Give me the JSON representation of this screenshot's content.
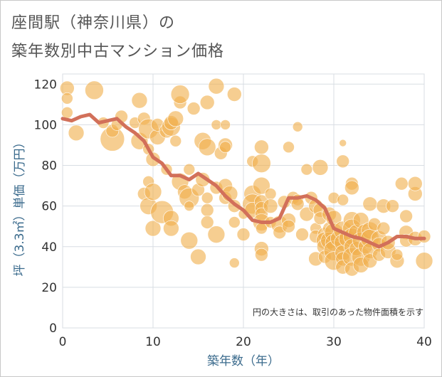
{
  "chart_data": {
    "type": "scatter",
    "title_line1": "座間駅（神奈川県）の",
    "title_line2": "築年数別中古マンション価格",
    "xlabel": "築年数（年）",
    "ylabel": "坪（3.3㎡）単価（万円）",
    "annotation": "円の大きさは、取引のあった物件面積を示す",
    "xlim": [
      0,
      40
    ],
    "ylim": [
      0,
      125
    ],
    "x_ticks": [
      0,
      10,
      20,
      30,
      40
    ],
    "y_ticks": [
      0,
      20,
      40,
      60,
      80,
      100,
      120
    ],
    "grid": true,
    "colors": {
      "bubble": "#f0b04e",
      "line": "#d2705a",
      "grid": "#d8dde3",
      "axis_text": "#3a6a8c"
    },
    "series": [
      {
        "type": "line",
        "x": [
          0,
          1,
          2,
          3,
          4,
          5,
          6,
          7,
          8,
          9,
          10,
          11,
          12,
          13,
          14,
          15,
          16,
          17,
          18,
          19,
          20,
          21,
          22,
          23,
          24,
          25,
          26,
          27,
          28,
          29,
          30,
          31,
          32,
          33,
          34,
          35,
          36,
          37,
          38,
          39,
          40
        ],
        "y": [
          103,
          102,
          104,
          105,
          101,
          102,
          103,
          99,
          96,
          92,
          84,
          81,
          75,
          75,
          73,
          76,
          73,
          70,
          65,
          61,
          58,
          53,
          52,
          52,
          54,
          64,
          64,
          65,
          63,
          59,
          49,
          47,
          45,
          44,
          42,
          40,
          42,
          45,
          45,
          44,
          44
        ]
      },
      {
        "type": "bubble",
        "points": [
          [
            0.5,
            118,
            10
          ],
          [
            0.5,
            113,
            8
          ],
          [
            0.5,
            106,
            8
          ],
          [
            1.5,
            96,
            11
          ],
          [
            3.5,
            117,
            13
          ],
          [
            4.5,
            101,
            8
          ],
          [
            5.5,
            93,
            17
          ],
          [
            5.5,
            97,
            9
          ],
          [
            6,
            100,
            8
          ],
          [
            6.5,
            104,
            9
          ],
          [
            8,
            101,
            8
          ],
          [
            8.5,
            92,
            12
          ],
          [
            8.5,
            112,
            11
          ],
          [
            9,
            103,
            9
          ],
          [
            9,
            66,
            9
          ],
          [
            9.5,
            98,
            14
          ],
          [
            9.5,
            88,
            8
          ],
          [
            9.5,
            60,
            12
          ],
          [
            9.5,
            72,
            8
          ],
          [
            10,
            67,
            12
          ],
          [
            10,
            49,
            11
          ],
          [
            10,
            83,
            10
          ],
          [
            10.5,
            94,
            11
          ],
          [
            10.5,
            100,
            9
          ],
          [
            11,
            57,
            16
          ],
          [
            11.5,
            78,
            8
          ],
          [
            11.5,
            97,
            10
          ],
          [
            12,
            99,
            13
          ],
          [
            12,
            101,
            10
          ],
          [
            12,
            54,
            11
          ],
          [
            12,
            49,
            11
          ],
          [
            12.5,
            103,
            11
          ],
          [
            12.5,
            92,
            8
          ],
          [
            13,
            72,
            12
          ],
          [
            13,
            111,
            9
          ],
          [
            13,
            115,
            13
          ],
          [
            13.5,
            67,
            10
          ],
          [
            14,
            64,
            14
          ],
          [
            14,
            78,
            8
          ],
          [
            14,
            43,
            12
          ],
          [
            14,
            60,
            7
          ],
          [
            14.5,
            108,
            9
          ],
          [
            15,
            35,
            11
          ],
          [
            15,
            68,
            9
          ],
          [
            15.5,
            73,
            10
          ],
          [
            15.5,
            92,
            12
          ],
          [
            16,
            89,
            12
          ],
          [
            16,
            58,
            9
          ],
          [
            16,
            111,
            10
          ],
          [
            16,
            52,
            9
          ],
          [
            16,
            64,
            8
          ],
          [
            17,
            119,
            11
          ],
          [
            17,
            46,
            12
          ],
          [
            17,
            100,
            7
          ],
          [
            17,
            69,
            9
          ],
          [
            17.5,
            86,
            9
          ],
          [
            18,
            70,
            10
          ],
          [
            18,
            64,
            9
          ],
          [
            18,
            90,
            10
          ],
          [
            18,
            89,
            8
          ],
          [
            18,
            100,
            7
          ],
          [
            18.5,
            66,
            11
          ],
          [
            19,
            115,
            10
          ],
          [
            19,
            32,
            7
          ],
          [
            19,
            60,
            9
          ],
          [
            19,
            52,
            8
          ],
          [
            20,
            46,
            9
          ],
          [
            20,
            56,
            7
          ],
          [
            21,
            66,
            12
          ],
          [
            21,
            61,
            14
          ],
          [
            21,
            58,
            11
          ],
          [
            21,
            82,
            8
          ],
          [
            22,
            81,
            13
          ],
          [
            22,
            89,
            10
          ],
          [
            22,
            70,
            12
          ],
          [
            22,
            62,
            10
          ],
          [
            22,
            59,
            9
          ],
          [
            22,
            56,
            9
          ],
          [
            22,
            52,
            12
          ],
          [
            22,
            39,
            10
          ],
          [
            22,
            36,
            9
          ],
          [
            22,
            49,
            8
          ],
          [
            23,
            66,
            8
          ],
          [
            23,
            60,
            10
          ],
          [
            23,
            52,
            8
          ],
          [
            24,
            51,
            12
          ],
          [
            24,
            47,
            9
          ],
          [
            24.5,
            62,
            9
          ],
          [
            25,
            89,
            8
          ],
          [
            25,
            53,
            10
          ],
          [
            25,
            50,
            9
          ],
          [
            25.5,
            64,
            9
          ],
          [
            26,
            99,
            7
          ],
          [
            26,
            63,
            8
          ],
          [
            26,
            61,
            9
          ],
          [
            26.5,
            46,
            9
          ],
          [
            27,
            78,
            8
          ],
          [
            27,
            56,
            10
          ],
          [
            27.5,
            64,
            9
          ],
          [
            28,
            60,
            10
          ],
          [
            28,
            34,
            10
          ],
          [
            28,
            49,
            8
          ],
          [
            28,
            45,
            9
          ],
          [
            28.5,
            79,
            11
          ],
          [
            28.5,
            58,
            10
          ],
          [
            28.5,
            54,
            9
          ],
          [
            29,
            46,
            10
          ],
          [
            29,
            43,
            12
          ],
          [
            29,
            40,
            11
          ],
          [
            29,
            35,
            9
          ],
          [
            29.5,
            56,
            10
          ],
          [
            29.5,
            49,
            9
          ],
          [
            29.5,
            43,
            12
          ],
          [
            30,
            64,
            8
          ],
          [
            30,
            54,
            11
          ],
          [
            30,
            47,
            13
          ],
          [
            30,
            42,
            12
          ],
          [
            30,
            38,
            14
          ],
          [
            30,
            33,
            13
          ],
          [
            30.5,
            44,
            11
          ],
          [
            31,
            91,
            5
          ],
          [
            31,
            82,
            9
          ],
          [
            31,
            63,
            8
          ],
          [
            31,
            48,
            13
          ],
          [
            31,
            42,
            12
          ],
          [
            31,
            37,
            11
          ],
          [
            31,
            34,
            10
          ],
          [
            31,
            30,
            10
          ],
          [
            31.5,
            44,
            12
          ],
          [
            32,
            71,
            9
          ],
          [
            32,
            69,
            10
          ],
          [
            32,
            53,
            12
          ],
          [
            32,
            49,
            13
          ],
          [
            32,
            45,
            12
          ],
          [
            32,
            40,
            11
          ],
          [
            32,
            35,
            13
          ],
          [
            32,
            29,
            10
          ],
          [
            32.5,
            47,
            11
          ],
          [
            32.5,
            39,
            10
          ],
          [
            33,
            53,
            11
          ],
          [
            33,
            43,
            12
          ],
          [
            33,
            35,
            13
          ],
          [
            33,
            31,
            11
          ],
          [
            33.5,
            47,
            12
          ],
          [
            33.5,
            40,
            10
          ],
          [
            34,
            61,
            10
          ],
          [
            34,
            48,
            12
          ],
          [
            34,
            44,
            13
          ],
          [
            34,
            38,
            11
          ],
          [
            34,
            33,
            10
          ],
          [
            34.5,
            51,
            9
          ],
          [
            35,
            44,
            11
          ],
          [
            35,
            41,
            10
          ],
          [
            35,
            36,
            9
          ],
          [
            35.5,
            60,
            10
          ],
          [
            35.5,
            49,
            9
          ],
          [
            36,
            38,
            11
          ],
          [
            36,
            42,
            10
          ],
          [
            36.5,
            60,
            9
          ],
          [
            37,
            33,
            10
          ],
          [
            37,
            36,
            8
          ],
          [
            37.5,
            71,
            9
          ],
          [
            38,
            55,
            9
          ],
          [
            38,
            47,
            10
          ],
          [
            38,
            43,
            9
          ],
          [
            39,
            66,
            10
          ],
          [
            39,
            71,
            10
          ],
          [
            39,
            44,
            10
          ],
          [
            40,
            45,
            9
          ],
          [
            40,
            33,
            12
          ]
        ]
      }
    ]
  }
}
